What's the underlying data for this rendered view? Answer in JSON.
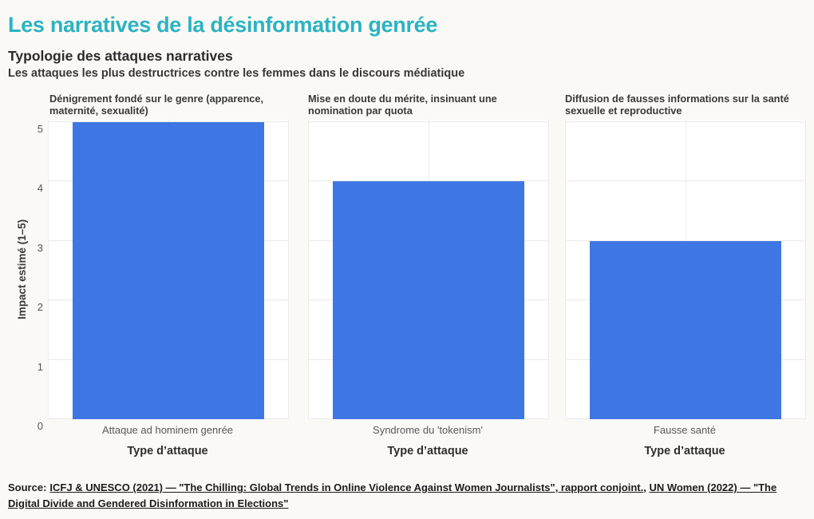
{
  "header": {
    "title": "Les narratives de la désinformation genrée",
    "subtitle": "Typologie des attaques narratives",
    "description": "Les attaques les plus destructrices contre les femmes dans le discours médiatique"
  },
  "chart_data": {
    "type": "bar",
    "title": "Typologie des attaques narratives",
    "subtitle": "Les attaques les plus destructrices contre les femmes dans le discours médiatique",
    "xlabel": "Type d’attaque",
    "ylabel": "Impact estimé (1–5)",
    "ylim": [
      0,
      5.04
    ],
    "yticks": [
      0,
      1,
      2,
      3,
      4,
      5
    ],
    "grid": true,
    "legend": false,
    "bar_color": "#3e76e3",
    "facets": [
      {
        "title": "Dénigrement fondé sur le genre (apparence, maternité, sexualité)",
        "category": "Attaque ad hominem genrée",
        "value": 5.0
      },
      {
        "title": "Mise en doute du mérite, insinuant une nomination par quota",
        "category": "Syndrome du 'tokenism'",
        "value": 4.0
      },
      {
        "title": "Diffusion de fausses informations sur la santé sexuelle et reproductive",
        "category": "Fausse santé",
        "value": 3.0
      }
    ]
  },
  "source": {
    "label": "Source:",
    "link1": "ICFJ & UNESCO (2021) — \"The Chilling: Global Trends in Online Violence Against Women Journalists\", rapport conjoint.",
    "separator": ", ",
    "link2": "UN Women (2022) — \"The Digital Divide and Gendered Disinformation in Elections\""
  },
  "colors": {
    "title_accent": "#2bb3c3",
    "bar": "#3e76e3",
    "background": "#faf9f5",
    "panel": "#ffffff",
    "gridline": "#e9e9e7"
  }
}
